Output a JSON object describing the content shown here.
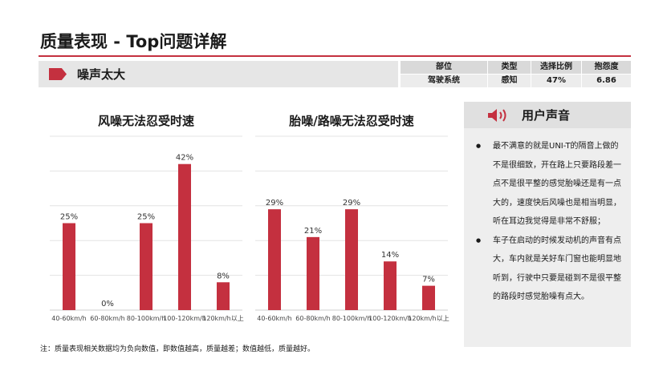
{
  "page": {
    "title": "质量表现 - Top问题详解",
    "issue": "噪声太大",
    "note": "注：质量表现相关数据均为负向数值，即数值越高，质量越差；数值越低，质量越好。"
  },
  "stats": {
    "headers": [
      "部位",
      "类型",
      "选择比例",
      "抱怨度"
    ],
    "values": [
      "驾驶系统",
      "感知",
      "47%",
      "6.86"
    ]
  },
  "colors": {
    "accent": "#c4303f",
    "bar": "#c4303f",
    "panel": "#eeeeee"
  },
  "voice": {
    "title": "用户声音",
    "icon": "speaker-icon",
    "items": [
      "最不满意的就是UNI-T的隔音上做的不是很细致，开在路上只要路段差一点不是很平整的感觉胎噪还是有一点大的，速度快后风噪也是相当明显，听在耳边我觉得是非常不舒服；",
      "车子在启动的时候发动机的声音有点大，车内就是关好车门窗也能明显地听到，行驶中只要是碰到不是很平整的路段时感觉胎噪有点大。"
    ]
  },
  "chart_data": [
    {
      "type": "bar",
      "title": "风噪无法忍受时速",
      "categories": [
        "40-60km/h",
        "60-80km/h",
        "80-100km/h",
        "100-120km/h",
        "120km/h以上"
      ],
      "values": [
        25,
        0,
        25,
        42,
        8
      ],
      "labels": [
        "25%",
        "0%",
        "25%",
        "42%",
        "8%"
      ],
      "ylim": [
        0,
        50
      ],
      "grid": true
    },
    {
      "type": "bar",
      "title": "胎噪/路噪无法忍受时速",
      "categories": [
        "40-60km/h",
        "60-80km/h",
        "80-100km/h",
        "100-120km/h",
        "120km/h以上"
      ],
      "values": [
        29,
        21,
        29,
        14,
        7
      ],
      "labels": [
        "29%",
        "21%",
        "29%",
        "14%",
        "7%"
      ],
      "ylim": [
        0,
        50
      ],
      "grid": true
    }
  ]
}
